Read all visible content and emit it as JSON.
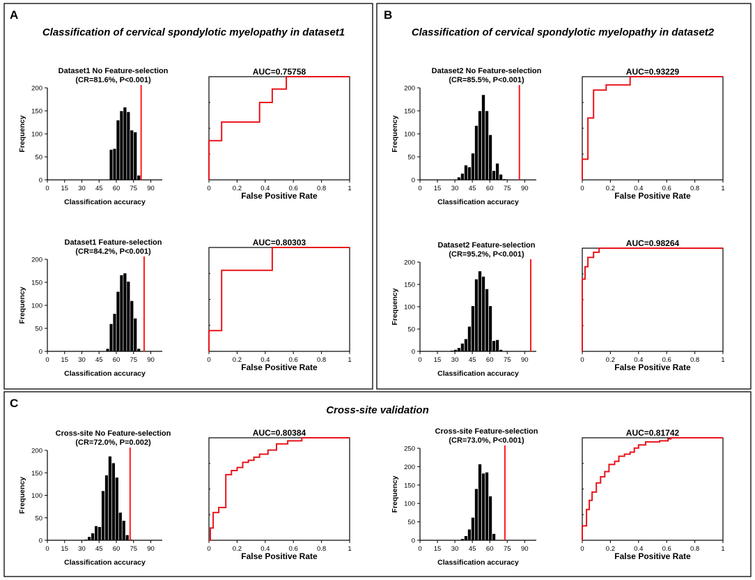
{
  "panels": [
    {
      "letter": "A",
      "title": "Classification of cervical spondylotic myelopathy in dataset1"
    },
    {
      "letter": "B",
      "title": "Classification of cervical spondylotic myelopathy in dataset2"
    },
    {
      "letter": "C",
      "title": "Cross-site validation"
    }
  ],
  "chart_data": [
    {
      "type": "bar",
      "panel": "A",
      "title": "Dataset1 No Feature-selection",
      "subtitle": "(CR=81.6%, P<0.001)",
      "xlabel": "Classification accuracy",
      "ylabel": "Frequency",
      "xlim": [
        0,
        100
      ],
      "xticks": [
        0,
        15,
        30,
        45,
        60,
        75,
        90
      ],
      "ylim": [
        0,
        200
      ],
      "yticks": [
        0,
        50,
        100,
        150,
        200
      ],
      "bin_width": 3,
      "bins": [
        {
          "x": 54,
          "y": 66
        },
        {
          "x": 57,
          "y": 68
        },
        {
          "x": 60,
          "y": 130
        },
        {
          "x": 63,
          "y": 150
        },
        {
          "x": 66,
          "y": 158
        },
        {
          "x": 69,
          "y": 148
        },
        {
          "x": 72,
          "y": 108
        },
        {
          "x": 75,
          "y": 104
        },
        {
          "x": 78,
          "y": 10
        }
      ],
      "observed_accuracy": 81.6
    },
    {
      "type": "line",
      "panel": "A",
      "title": "AUC=0.75758",
      "xlabel": "False Positive Rate",
      "xlim": [
        0,
        1
      ],
      "xticks": [
        "0",
        "0.2",
        "0.4",
        "0.6",
        "0.8",
        "1"
      ],
      "ylim": [
        0,
        1
      ],
      "roc_x": [
        0,
        0,
        0.09,
        0.09,
        0.36,
        0.36,
        0.45,
        0.45,
        0.55,
        0.55,
        1
      ],
      "roc_y": [
        0,
        0.38,
        0.38,
        0.56,
        0.56,
        0.75,
        0.75,
        0.88,
        0.88,
        1,
        1
      ]
    },
    {
      "type": "bar",
      "panel": "A",
      "title": "Dataset1 Feature-selection",
      "subtitle": "(CR=84.2%, P<0.001)",
      "xlabel": "Classification accuracy",
      "ylabel": "Frequency",
      "xlim": [
        0,
        100
      ],
      "xticks": [
        0,
        15,
        30,
        45,
        60,
        75,
        90
      ],
      "ylim": [
        0,
        200
      ],
      "yticks": [
        0,
        50,
        100,
        150,
        200
      ],
      "bin_width": 3,
      "bins": [
        {
          "x": 51,
          "y": 6
        },
        {
          "x": 54,
          "y": 60
        },
        {
          "x": 57,
          "y": 82
        },
        {
          "x": 60,
          "y": 130
        },
        {
          "x": 63,
          "y": 166
        },
        {
          "x": 66,
          "y": 170
        },
        {
          "x": 69,
          "y": 152
        },
        {
          "x": 72,
          "y": 110
        },
        {
          "x": 75,
          "y": 72
        },
        {
          "x": 78,
          "y": 6
        }
      ],
      "observed_accuracy": 84.2
    },
    {
      "type": "line",
      "panel": "A",
      "title": "AUC=0.80303",
      "xlabel": "False Positive Rate",
      "xlim": [
        0,
        1
      ],
      "xticks": [
        "0",
        "0.2",
        "0.4",
        "0.6",
        "0.8",
        "1"
      ],
      "ylim": [
        0,
        1
      ],
      "roc_x": [
        0,
        0,
        0.09,
        0.09,
        0.45,
        0.45,
        1
      ],
      "roc_y": [
        0,
        0.2,
        0.2,
        0.78,
        0.78,
        1,
        1
      ]
    },
    {
      "type": "bar",
      "panel": "B",
      "title": "Dataset2 No Feature-selection",
      "subtitle": "(CR=85.5%, P<0.001)",
      "xlabel": "Classification accuracy",
      "ylabel": "Frequency",
      "xlim": [
        0,
        100
      ],
      "xticks": [
        0,
        15,
        30,
        45,
        60,
        75,
        90
      ],
      "ylim": [
        0,
        200
      ],
      "yticks": [
        0,
        50,
        100,
        150,
        200
      ],
      "bin_width": 3,
      "bins": [
        {
          "x": 32,
          "y": 6
        },
        {
          "x": 35,
          "y": 14
        },
        {
          "x": 38,
          "y": 32
        },
        {
          "x": 41,
          "y": 28
        },
        {
          "x": 44,
          "y": 58
        },
        {
          "x": 47,
          "y": 118
        },
        {
          "x": 50,
          "y": 150
        },
        {
          "x": 53,
          "y": 185
        },
        {
          "x": 56,
          "y": 150
        },
        {
          "x": 59,
          "y": 98
        },
        {
          "x": 62,
          "y": 20
        },
        {
          "x": 65,
          "y": 36
        },
        {
          "x": 68,
          "y": 12
        },
        {
          "x": 71,
          "y": 2
        }
      ],
      "observed_accuracy": 85.5
    },
    {
      "type": "line",
      "panel": "B",
      "title": "AUC=0.93229",
      "xlabel": "False Positive Rate",
      "xlim": [
        0,
        1
      ],
      "xticks": [
        "0",
        "0.2",
        "0.4",
        "0.6",
        "0.8",
        "1"
      ],
      "ylim": [
        0,
        1
      ],
      "roc_x": [
        0,
        0,
        0.04,
        0.04,
        0.08,
        0.08,
        0.17,
        0.17,
        0.34,
        0.34,
        1
      ],
      "roc_y": [
        0,
        0.2,
        0.2,
        0.6,
        0.6,
        0.87,
        0.87,
        0.92,
        0.92,
        1,
        1
      ]
    },
    {
      "type": "bar",
      "panel": "B",
      "title": "Dataset2 Feature-selection",
      "subtitle": "(CR=95.2%, P<0.001)",
      "xlabel": "Classification accuracy",
      "ylabel": "Frequency",
      "xlim": [
        0,
        100
      ],
      "xticks": [
        0,
        15,
        30,
        45,
        60,
        75,
        90
      ],
      "ylim": [
        0,
        200
      ],
      "yticks": [
        0,
        50,
        100,
        150,
        200
      ],
      "bin_width": 3,
      "bins": [
        {
          "x": 26,
          "y": 2
        },
        {
          "x": 29,
          "y": 4
        },
        {
          "x": 32,
          "y": 8
        },
        {
          "x": 35,
          "y": 18
        },
        {
          "x": 38,
          "y": 28
        },
        {
          "x": 41,
          "y": 56
        },
        {
          "x": 44,
          "y": 102
        },
        {
          "x": 47,
          "y": 162
        },
        {
          "x": 50,
          "y": 180
        },
        {
          "x": 53,
          "y": 168
        },
        {
          "x": 56,
          "y": 140
        },
        {
          "x": 59,
          "y": 102
        },
        {
          "x": 62,
          "y": 24
        },
        {
          "x": 65,
          "y": 26
        },
        {
          "x": 68,
          "y": 4
        },
        {
          "x": 71,
          "y": 1
        }
      ],
      "observed_accuracy": 95.2
    },
    {
      "type": "line",
      "panel": "B",
      "title": "AUC=0.98264",
      "xlabel": "False Positive Rate",
      "xlim": [
        0,
        1
      ],
      "xticks": [
        "0",
        "0.2",
        "0.4",
        "0.6",
        "0.8",
        "1"
      ],
      "ylim": [
        0,
        1
      ],
      "roc_x": [
        0,
        0,
        0.02,
        0.02,
        0.04,
        0.04,
        0.08,
        0.08,
        0.12,
        0.12,
        1
      ],
      "roc_y": [
        0,
        0.7,
        0.7,
        0.82,
        0.82,
        0.91,
        0.91,
        0.96,
        0.96,
        1,
        1
      ]
    },
    {
      "type": "bar",
      "panel": "C",
      "title": "Cross-site No Feature-selection",
      "subtitle": "(CR=72.0%, P=0.002)",
      "xlabel": "Classification accuracy",
      "ylabel": "Frequency",
      "xlim": [
        0,
        100
      ],
      "xticks": [
        0,
        15,
        30,
        45,
        60,
        75,
        90
      ],
      "ylim": [
        0,
        200
      ],
      "yticks": [
        0,
        50,
        100,
        150,
        200
      ],
      "bin_width": 3,
      "bins": [
        {
          "x": 32,
          "y": 2
        },
        {
          "x": 35,
          "y": 8
        },
        {
          "x": 38,
          "y": 16
        },
        {
          "x": 41,
          "y": 32
        },
        {
          "x": 44,
          "y": 30
        },
        {
          "x": 47,
          "y": 110
        },
        {
          "x": 50,
          "y": 145
        },
        {
          "x": 53,
          "y": 187
        },
        {
          "x": 56,
          "y": 172
        },
        {
          "x": 59,
          "y": 140
        },
        {
          "x": 62,
          "y": 62
        },
        {
          "x": 65,
          "y": 44
        },
        {
          "x": 68,
          "y": 12
        },
        {
          "x": 71,
          "y": 2
        }
      ],
      "observed_accuracy": 72.0
    },
    {
      "type": "line",
      "panel": "C",
      "title": "AUC=0.80384",
      "xlabel": "False Positive Rate",
      "xlim": [
        0,
        1
      ],
      "xticks": [
        "0",
        "0.2",
        "0.4",
        "0.6",
        "0.8",
        "1"
      ],
      "ylim": [
        0,
        1
      ],
      "roc_x": [
        0,
        0.01,
        0.01,
        0.03,
        0.03,
        0.07,
        0.07,
        0.12,
        0.12,
        0.16,
        0.16,
        0.2,
        0.2,
        0.24,
        0.24,
        0.28,
        0.28,
        0.32,
        0.32,
        0.36,
        0.36,
        0.42,
        0.42,
        0.48,
        0.48,
        0.56,
        0.56,
        0.66,
        0.66,
        1
      ],
      "roc_y": [
        0,
        0,
        0.12,
        0.12,
        0.27,
        0.27,
        0.32,
        0.32,
        0.64,
        0.64,
        0.68,
        0.68,
        0.71,
        0.71,
        0.76,
        0.76,
        0.78,
        0.78,
        0.81,
        0.81,
        0.84,
        0.84,
        0.88,
        0.88,
        0.94,
        0.94,
        0.97,
        0.97,
        1,
        1
      ]
    },
    {
      "type": "bar",
      "panel": "C",
      "title": "Cross-site Feature-selection",
      "subtitle": "(CR=73.0%, P<0.001)",
      "xlabel": "Classification accuracy",
      "ylabel": "Frequency",
      "xlim": [
        0,
        100
      ],
      "xticks": [
        0,
        15,
        30,
        45,
        60,
        75,
        90
      ],
      "ylim": [
        0,
        250
      ],
      "yticks": [
        0,
        50,
        100,
        150,
        200,
        250
      ],
      "bin_width": 3,
      "bins": [
        {
          "x": 35,
          "y": 4
        },
        {
          "x": 38,
          "y": 12
        },
        {
          "x": 41,
          "y": 30
        },
        {
          "x": 44,
          "y": 62
        },
        {
          "x": 47,
          "y": 140
        },
        {
          "x": 50,
          "y": 207
        },
        {
          "x": 53,
          "y": 182
        },
        {
          "x": 56,
          "y": 185
        },
        {
          "x": 59,
          "y": 120
        },
        {
          "x": 62,
          "y": 18
        }
      ],
      "observed_accuracy": 73.0
    },
    {
      "type": "line",
      "panel": "C",
      "title": "AUC=0.81742",
      "xlabel": "False Positive Rate",
      "xlim": [
        0,
        1
      ],
      "xticks": [
        "0",
        "0.2",
        "0.4",
        "0.6",
        "0.8",
        "1"
      ],
      "ylim": [
        0,
        1
      ],
      "roc_x": [
        0,
        0,
        0.03,
        0.03,
        0.05,
        0.05,
        0.07,
        0.07,
        0.1,
        0.1,
        0.13,
        0.13,
        0.16,
        0.16,
        0.19,
        0.19,
        0.23,
        0.23,
        0.26,
        0.26,
        0.3,
        0.3,
        0.34,
        0.34,
        0.37,
        0.37,
        0.4,
        0.4,
        0.45,
        0.45,
        0.55,
        0.55,
        0.61,
        0.61,
        0.63,
        0.63,
        1
      ],
      "roc_y": [
        0,
        0.14,
        0.14,
        0.3,
        0.3,
        0.39,
        0.39,
        0.47,
        0.47,
        0.56,
        0.56,
        0.62,
        0.62,
        0.67,
        0.67,
        0.74,
        0.74,
        0.77,
        0.77,
        0.82,
        0.82,
        0.84,
        0.84,
        0.86,
        0.86,
        0.9,
        0.9,
        0.93,
        0.93,
        0.96,
        0.96,
        0.97,
        0.97,
        0.99,
        0.99,
        1,
        1
      ]
    }
  ]
}
